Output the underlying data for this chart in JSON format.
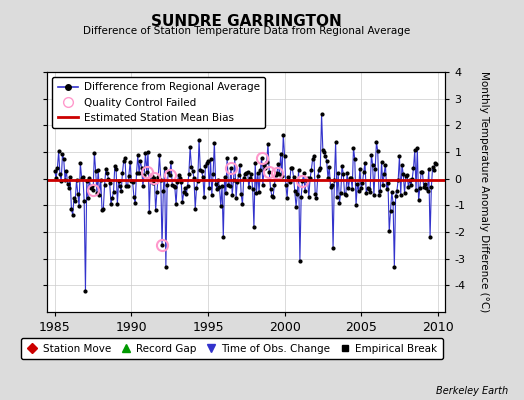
{
  "title": "SUNDRE GARRINGTON",
  "subtitle": "Difference of Station Temperature Data from Regional Average",
  "ylabel": "Monthly Temperature Anomaly Difference (°C)",
  "xlabel_ticks": [
    1985,
    1990,
    1995,
    2000,
    2005,
    2010
  ],
  "ylim": [
    -5,
    4
  ],
  "yticks": [
    -4,
    -3,
    -2,
    -1,
    0,
    1,
    2,
    3,
    4
  ],
  "xlim": [
    1984.5,
    2010.5
  ],
  "bias_value": -0.05,
  "background_color": "#dcdcdc",
  "plot_bg_color": "#ffffff",
  "line_color": "#3333cc",
  "bias_color": "#cc0000",
  "qc_color": "#ff99cc",
  "watermark": "Berkeley Earth",
  "seed": 42,
  "figsize": [
    5.24,
    4.0
  ],
  "dpi": 100
}
